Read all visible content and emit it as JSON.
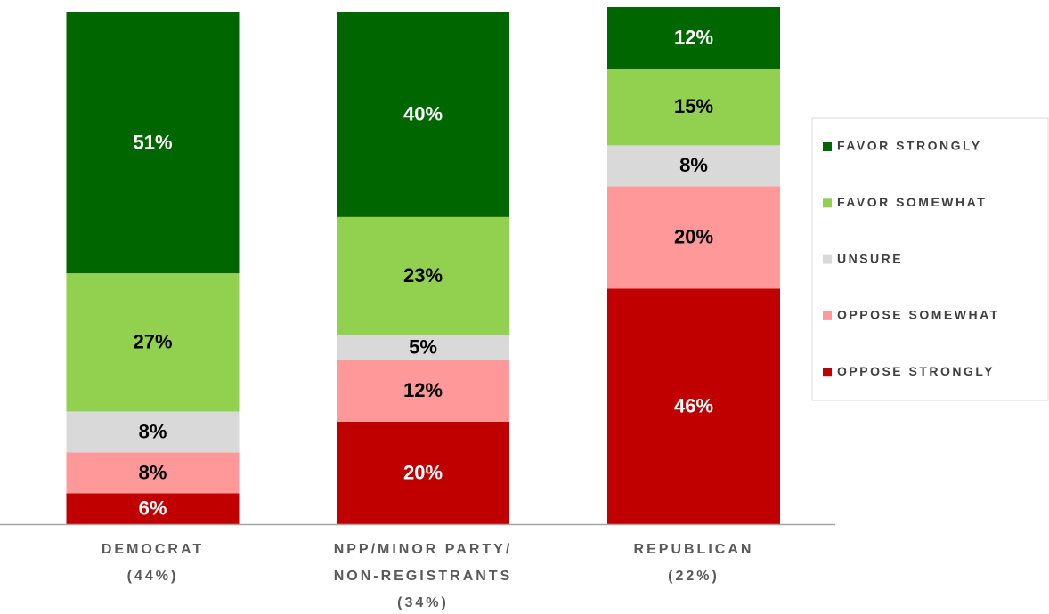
{
  "chart_data": {
    "type": "stacked_bar",
    "categories": [
      [
        "DEMOCRAT",
        "(44%)"
      ],
      [
        "NPP/MINOR PARTY/",
        "NON-REGISTRANTS",
        "(34%)"
      ],
      [
        "REPUBLICAN",
        "(22%)"
      ]
    ],
    "series": [
      {
        "name": "OPPOSE STRONGLY",
        "color": "#c00000",
        "label_color": "#ffffff",
        "values": [
          6,
          20,
          46
        ],
        "value_labels": [
          "6%",
          "20%",
          "46%"
        ]
      },
      {
        "name": "OPPOSE SOMEWHAT",
        "color": "#ff9999",
        "label_color": "#000000",
        "values": [
          8,
          12,
          20
        ],
        "value_labels": [
          "8%",
          "12%",
          "20%"
        ]
      },
      {
        "name": "UNSURE",
        "color": "#d9d9d9",
        "label_color": "#000000",
        "values": [
          8,
          5,
          8
        ],
        "value_labels": [
          "8%",
          "5%",
          "8%"
        ]
      },
      {
        "name": "FAVOR SOMEWHAT",
        "color": "#92d050",
        "label_color": "#000000",
        "values": [
          27,
          23,
          15
        ],
        "value_labels": [
          "27%",
          "23%",
          "15%"
        ]
      },
      {
        "name": "FAVOR STRONGLY",
        "color": "#006600",
        "label_color": "#ffffff",
        "values": [
          51,
          40,
          12
        ],
        "value_labels": [
          "51%",
          "40%",
          "12%"
        ]
      }
    ],
    "ylim": [
      0,
      101
    ],
    "legend": "right"
  }
}
